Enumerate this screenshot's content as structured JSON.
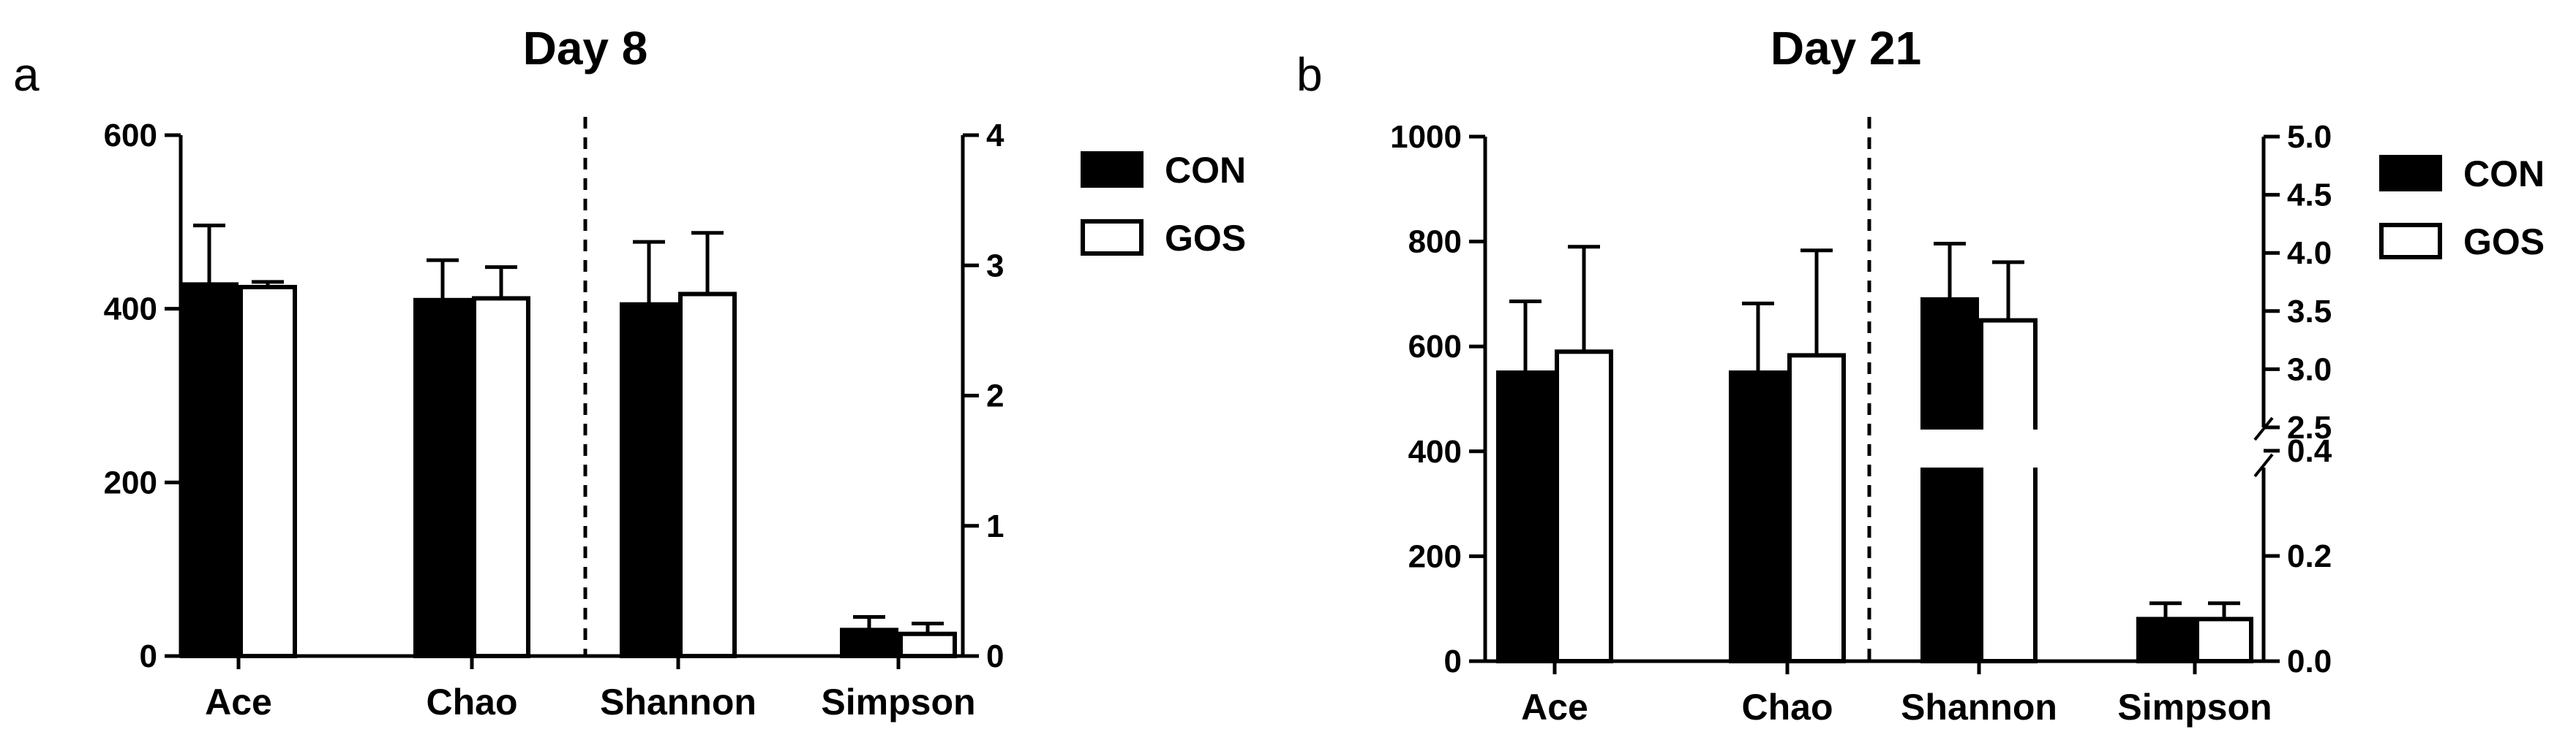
{
  "chart_data": [
    {
      "panel_label": "a",
      "type": "bar",
      "title": "Day 8",
      "categories": [
        "Ace",
        "Chao",
        "Shannon",
        "Simpson"
      ],
      "series": [
        {
          "name": "CON",
          "values": [
            428,
            410,
            2.7,
            0.2
          ],
          "errors": [
            68,
            46,
            0.48,
            0.1
          ],
          "color": "#000000"
        },
        {
          "name": "GOS",
          "values": [
            425,
            412,
            2.78,
            0.17
          ],
          "errors": [
            6,
            36,
            0.47,
            0.08
          ],
          "color": "#ffffff"
        }
      ],
      "left_axis": {
        "applies_to": [
          "Ace",
          "Chao"
        ],
        "ylim": [
          0,
          600
        ],
        "ticks": [
          "0",
          "200",
          "400",
          "600"
        ]
      },
      "right_axis": {
        "applies_to": [
          "Shannon",
          "Simpson"
        ],
        "ylim": [
          0,
          4
        ],
        "ticks": [
          "0",
          "1",
          "2",
          "3",
          "4"
        ]
      },
      "legend_position": "right"
    },
    {
      "panel_label": "b",
      "type": "bar",
      "title": "Day 21",
      "categories": [
        "Ace",
        "Chao",
        "Shannon",
        "Simpson"
      ],
      "series": [
        {
          "name": "CON",
          "values": [
            550,
            550,
            3.6,
            0.08
          ],
          "errors": [
            136,
            132,
            0.48,
            0.03
          ],
          "color": "#000000"
        },
        {
          "name": "GOS",
          "values": [
            590,
            583,
            3.42,
            0.08
          ],
          "errors": [
            200,
            200,
            0.5,
            0.03
          ],
          "color": "#ffffff"
        }
      ],
      "left_axis": {
        "applies_to": [
          "Ace",
          "Chao"
        ],
        "ylim": [
          0,
          1000
        ],
        "ticks": [
          "0",
          "200",
          "400",
          "600",
          "800",
          "1000"
        ]
      },
      "right_axis": {
        "applies_to": [
          "Shannon",
          "Simpson"
        ],
        "broken": true,
        "segments": [
          [
            0,
            0.5
          ],
          [
            2.5,
            5.0
          ]
        ],
        "ticks_lower": [
          "0.0",
          "0.2",
          "0.4"
        ],
        "ticks_upper": [
          "2.5",
          "3.0",
          "3.5",
          "4.0",
          "4.5",
          "5.0"
        ]
      },
      "legend_position": "right"
    }
  ]
}
